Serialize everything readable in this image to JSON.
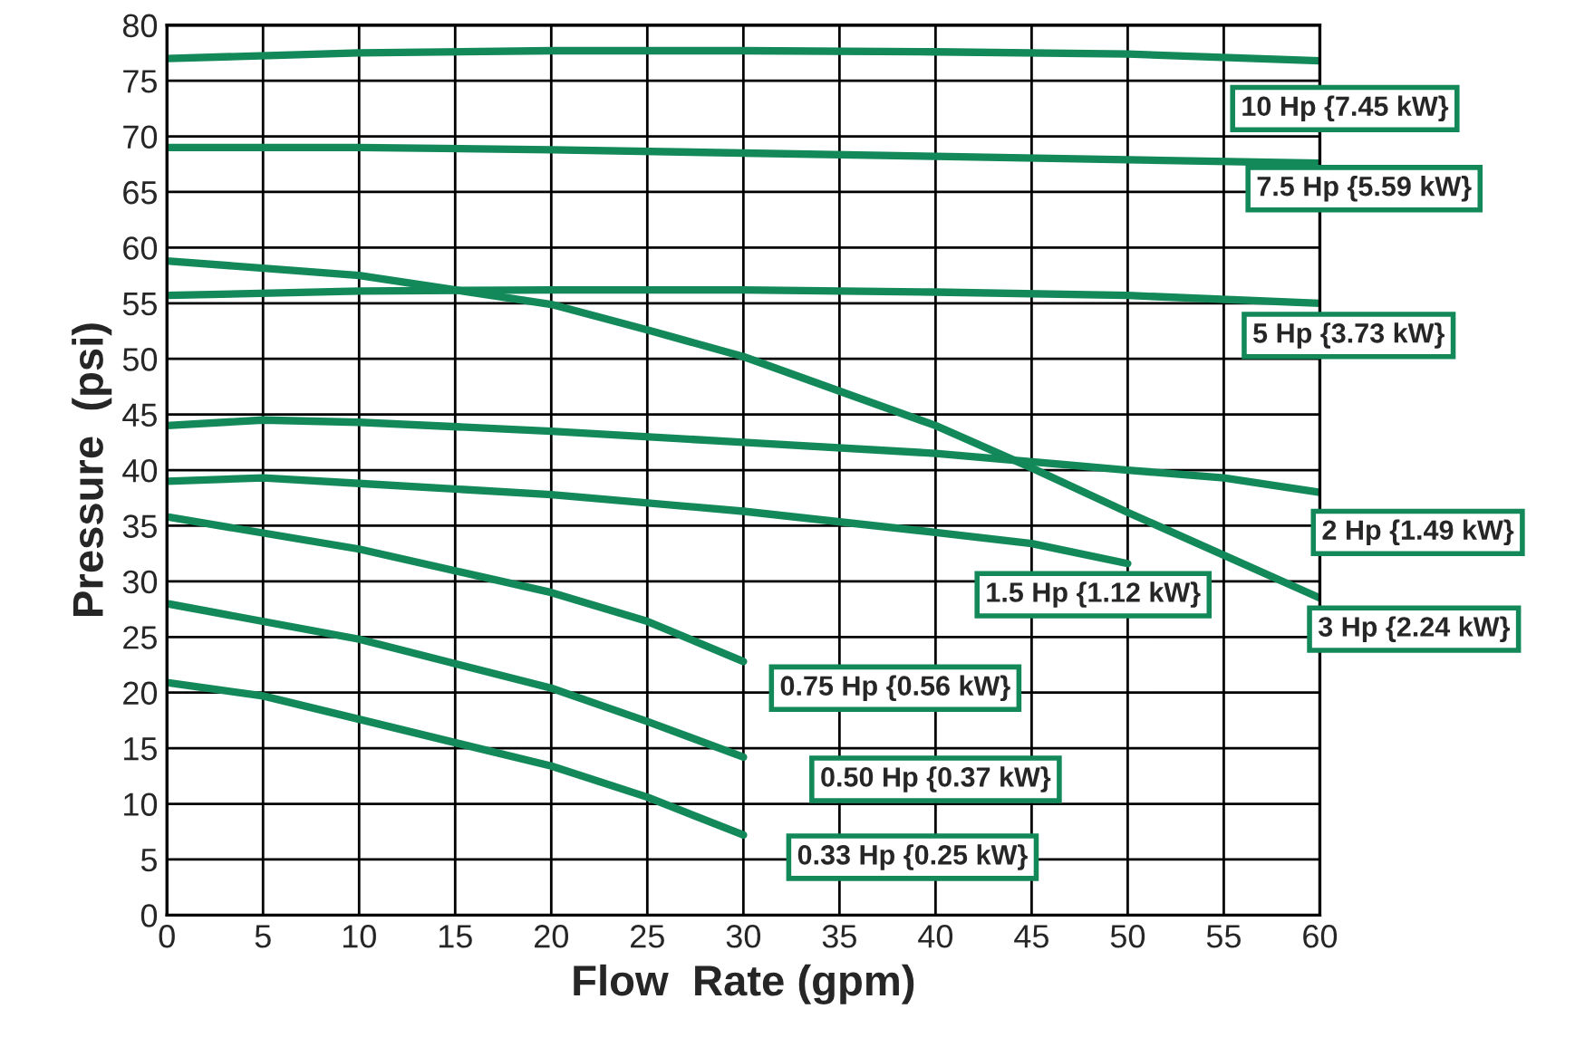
{
  "chart_data": {
    "type": "line",
    "xlabel": "Flow  Rate (gpm)",
    "ylabel": "Pressure  (psi)",
    "xlim": [
      0,
      60
    ],
    "xticks": [
      0,
      5,
      10,
      15,
      20,
      25,
      30,
      35,
      40,
      45,
      50,
      55,
      60
    ],
    "ylim": [
      0,
      80
    ],
    "yticks": [
      0,
      5,
      10,
      15,
      20,
      25,
      30,
      35,
      40,
      45,
      50,
      55,
      60,
      65,
      70,
      75,
      80
    ],
    "grid": true,
    "legend": false,
    "marker": "none",
    "line_style": "solid",
    "series": [
      {
        "name": "10 Hp {7.45 kW}",
        "color": "#13895a",
        "x": [
          0,
          10,
          20,
          30,
          40,
          50,
          60
        ],
        "values": [
          77,
          77.5,
          77.7,
          77.7,
          77.6,
          77.4,
          76.8
        ]
      },
      {
        "name": "7.5 Hp {5.59 kW}",
        "color": "#13895a",
        "x": [
          0,
          10,
          20,
          30,
          40,
          50,
          60
        ],
        "values": [
          69,
          69,
          68.8,
          68.5,
          68.2,
          67.9,
          67.6
        ]
      },
      {
        "name": "5 Hp {3.73 kW}",
        "color": "#13895a",
        "x": [
          0,
          10,
          20,
          30,
          40,
          50,
          60
        ],
        "values": [
          55.7,
          56.1,
          56.2,
          56.2,
          56,
          55.7,
          55
        ]
      },
      {
        "name": "3 Hp {2.24 kW}",
        "color": "#13895a",
        "x": [
          0,
          10,
          20,
          25,
          30,
          40,
          45,
          50,
          60
        ],
        "values": [
          58.8,
          57.5,
          54.9,
          52.6,
          50.2,
          44,
          40.2,
          36.2,
          28.5
        ]
      },
      {
        "name": "2 Hp {1.49 kW}",
        "color": "#13895a",
        "x": [
          0,
          5,
          10,
          20,
          30,
          40,
          50,
          55,
          60
        ],
        "values": [
          44,
          44.5,
          44.3,
          43.5,
          42.5,
          41.5,
          40,
          39.3,
          38
        ]
      },
      {
        "name": "1.5 Hp {1.12 kW}",
        "color": "#13895a",
        "x": [
          0,
          5,
          10,
          20,
          30,
          40,
          45,
          50
        ],
        "values": [
          39,
          39.3,
          38.8,
          37.8,
          36.3,
          34.4,
          33.4,
          31.6
        ]
      },
      {
        "name": "0.75 Hp {0.56 kW}",
        "color": "#13895a",
        "x": [
          0,
          10,
          20,
          25,
          30
        ],
        "values": [
          35.8,
          32.9,
          29,
          26.4,
          22.8
        ]
      },
      {
        "name": "0.50 Hp {0.37 kW}",
        "color": "#13895a",
        "x": [
          0,
          10,
          20,
          25,
          30
        ],
        "values": [
          28,
          24.8,
          20.4,
          17.4,
          14.2
        ]
      },
      {
        "name": "0.33 Hp {0.25 kW}",
        "color": "#13895a",
        "x": [
          0,
          5,
          10,
          20,
          25,
          30
        ],
        "values": [
          20.9,
          19.7,
          17.6,
          13.4,
          10.6,
          7.2
        ]
      }
    ]
  }
}
